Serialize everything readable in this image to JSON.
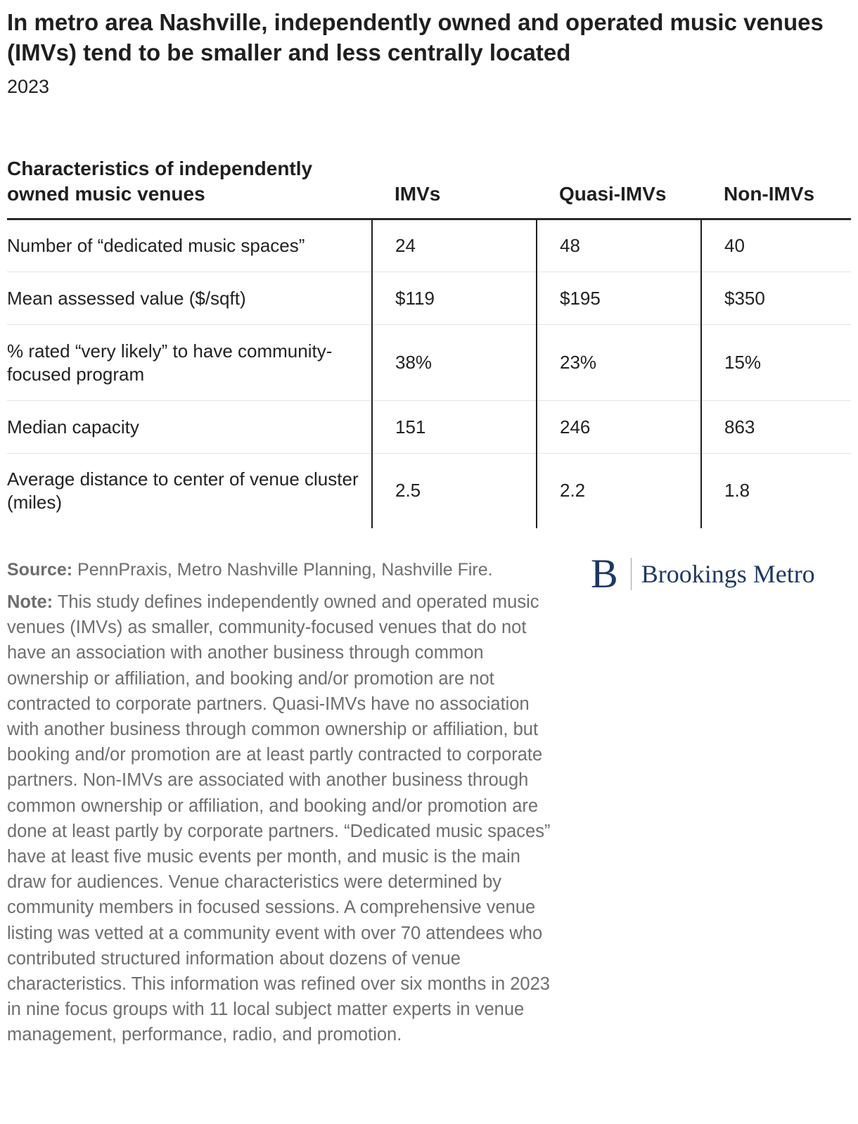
{
  "title": "In metro area Nashville, independently owned and operated music venues (IMVs) tend to be smaller and less centrally located",
  "subtitle": "2023",
  "chart_data": {
    "type": "table",
    "columns": [
      "Characteristics of independently owned music venues",
      "IMVs",
      "Quasi-IMVs",
      "Non-IMVs"
    ],
    "rows": [
      {
        "label": "Number of “dedicated music spaces”",
        "values": [
          "24",
          "48",
          "40"
        ]
      },
      {
        "label": "Mean assessed value ($/sqft)",
        "values": [
          "$119",
          "$195",
          "$350"
        ]
      },
      {
        "label": "% rated “very likely” to have community-focused program",
        "values": [
          "38%",
          "23%",
          "15%"
        ]
      },
      {
        "label": "Median capacity",
        "values": [
          "151",
          "246",
          "863"
        ]
      },
      {
        "label": "Average distance to center of venue cluster (miles)",
        "values": [
          "2.5",
          "2.2",
          "1.8"
        ]
      }
    ]
  },
  "source": {
    "label": "Source:",
    "text": " PennPraxis, Metro Nashville Planning, Nashville Fire."
  },
  "note": {
    "label": "Note:",
    "text": " This study defines independently owned and operated music venues (IMVs) as smaller, community-focused venues that do not have an association with another business through common ownership or affiliation, and booking and/or promotion are not contracted to corporate partners. Quasi-IMVs have no association with another business through common ownership or affiliation, but booking and/or promotion are at least partly contracted to corporate partners. Non-IMVs are associated with another business through common ownership or affiliation, and booking and/or promotion are done at least partly by corporate partners. “Dedicated music spaces” have at least five music events per month, and music is the main draw for audiences. Venue characteristics were determined by community members in focused sessions. A comprehensive venue listing was vetted at a community event with over 70 attendees who contributed structured information about dozens of venue characteristics. This information was refined over six months in 2023 in nine focus groups with 11 local subject matter experts in venue management, performance, radio, and promotion."
  },
  "logo": {
    "mark": "B",
    "text": "Brookings Metro",
    "color": "#1d3866"
  }
}
